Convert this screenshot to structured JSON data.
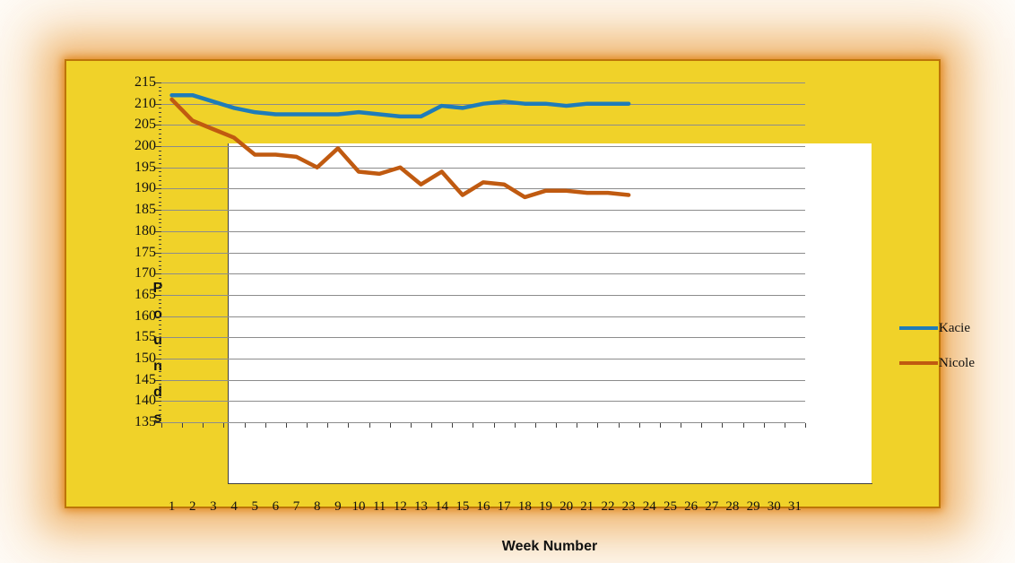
{
  "chart_box": {
    "fill": "#F0D229",
    "border_color": "#BD7509",
    "glow_color": "#E89B30"
  },
  "chart_data": {
    "type": "line",
    "title": "",
    "xlabel": "Week Number",
    "ylabel": "Pounds",
    "ylabel_stacked_vertically": true,
    "ylim": [
      135,
      215
    ],
    "ytick_step": 5,
    "y_ticks": [
      215,
      210,
      205,
      200,
      195,
      190,
      185,
      180,
      175,
      170,
      165,
      160,
      155,
      150,
      145,
      140,
      135
    ],
    "x_categories": [
      1,
      2,
      3,
      4,
      5,
      6,
      7,
      8,
      9,
      10,
      11,
      12,
      13,
      14,
      15,
      16,
      17,
      18,
      19,
      20,
      21,
      22,
      23,
      24,
      25,
      26,
      27,
      28,
      29,
      30,
      31
    ],
    "grid": true,
    "gridline_color": "#8C8C8C",
    "legend_position": "right",
    "series": [
      {
        "name": "Kacie",
        "color": "#1F7CB8",
        "values": [
          212,
          212,
          210.5,
          209,
          208,
          207.5,
          207.5,
          207.5,
          207.5,
          208,
          207.5,
          207,
          207,
          209.5,
          209,
          210,
          210.5,
          210,
          210,
          209.5,
          210,
          210,
          210
        ]
      },
      {
        "name": "Nicole",
        "color": "#C05A10",
        "values": [
          211,
          206,
          204,
          202,
          198,
          198,
          197.5,
          195,
          199.5,
          194,
          193.5,
          195,
          191,
          194,
          188.5,
          191.5,
          191,
          188,
          189.5,
          189.5,
          189,
          189,
          188.5
        ]
      }
    ]
  }
}
